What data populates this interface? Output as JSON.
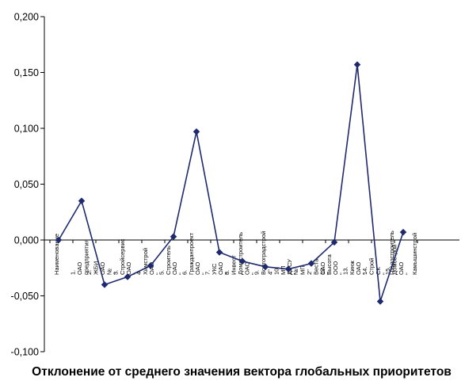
{
  "chart_data": {
    "type": "line",
    "title": "Отклонение от среднего значения вектора глобальных приоритетов",
    "xlabel": "",
    "ylabel": "",
    "ylim": [
      -0.1,
      0.2
    ],
    "ytick_values": [
      0.2,
      0.15,
      0.1,
      0.05,
      0.0,
      -0.05,
      -0.1
    ],
    "ytick_labels": [
      "0,200",
      "0,150",
      "0,100",
      "0,050",
      "0,000",
      "-0,050",
      "-0,100"
    ],
    "grid": false,
    "legend": "none",
    "categories": [
      [
        "Наименование"
      ],
      [
        "1.",
        "ОАО",
        "предприятия"
      ],
      [
        "2.",
        "ЖБИ",
        "ОАО",
        "№",
        "\""
      ],
      [
        "3.",
        "Стройсервис",
        "ОАО",
        "\""
      ],
      [
        "4.",
        "Химстрой",
        "ОАО",
        "\""
      ],
      [
        "5.",
        "Строитель",
        "ОАО",
        "\""
      ],
      [
        "6.",
        "Гражданпроект",
        "ОАО",
        "\""
      ],
      [
        "7.",
        "УКС",
        "ОАО",
        "\""
      ],
      [
        "8.",
        "Инвест",
        "Домостроитель",
        "ОАО",
        "\""
      ],
      [
        "9.",
        "Волгоградстрой",
        "4\""
      ],
      [
        "10.",
        "МП",
        "ДРСУ",
        "\""
      ],
      [
        "11.",
        "№",
        "МП",
        "2\"",
        "Веста",
        "ОАО",
        "\""
      ],
      [
        "12.",
        "Высота",
        "ООО",
        "\""
      ],
      [
        "13.",
        "Кинж",
        "ОАО",
        "\""
      ],
      [
        "14.",
        "Строй",
        "СК",
        "\"",
        "Градостроитель"
      ],
      [
        "15.",
        "Домострой",
        "ОАО",
        "\"",
        "Камышинстрой"
      ]
    ],
    "series": [
      {
        "values": [
          0.0,
          0.035,
          -0.04,
          -0.033,
          -0.023,
          0.003,
          0.097,
          -0.011,
          -0.019,
          -0.024,
          -0.026,
          -0.021,
          -0.002,
          0.157,
          -0.055,
          0.007
        ]
      }
    ],
    "colors": {
      "line": "#1f2a6e",
      "marker": "#1f2a6e",
      "axis": "#000000"
    }
  }
}
